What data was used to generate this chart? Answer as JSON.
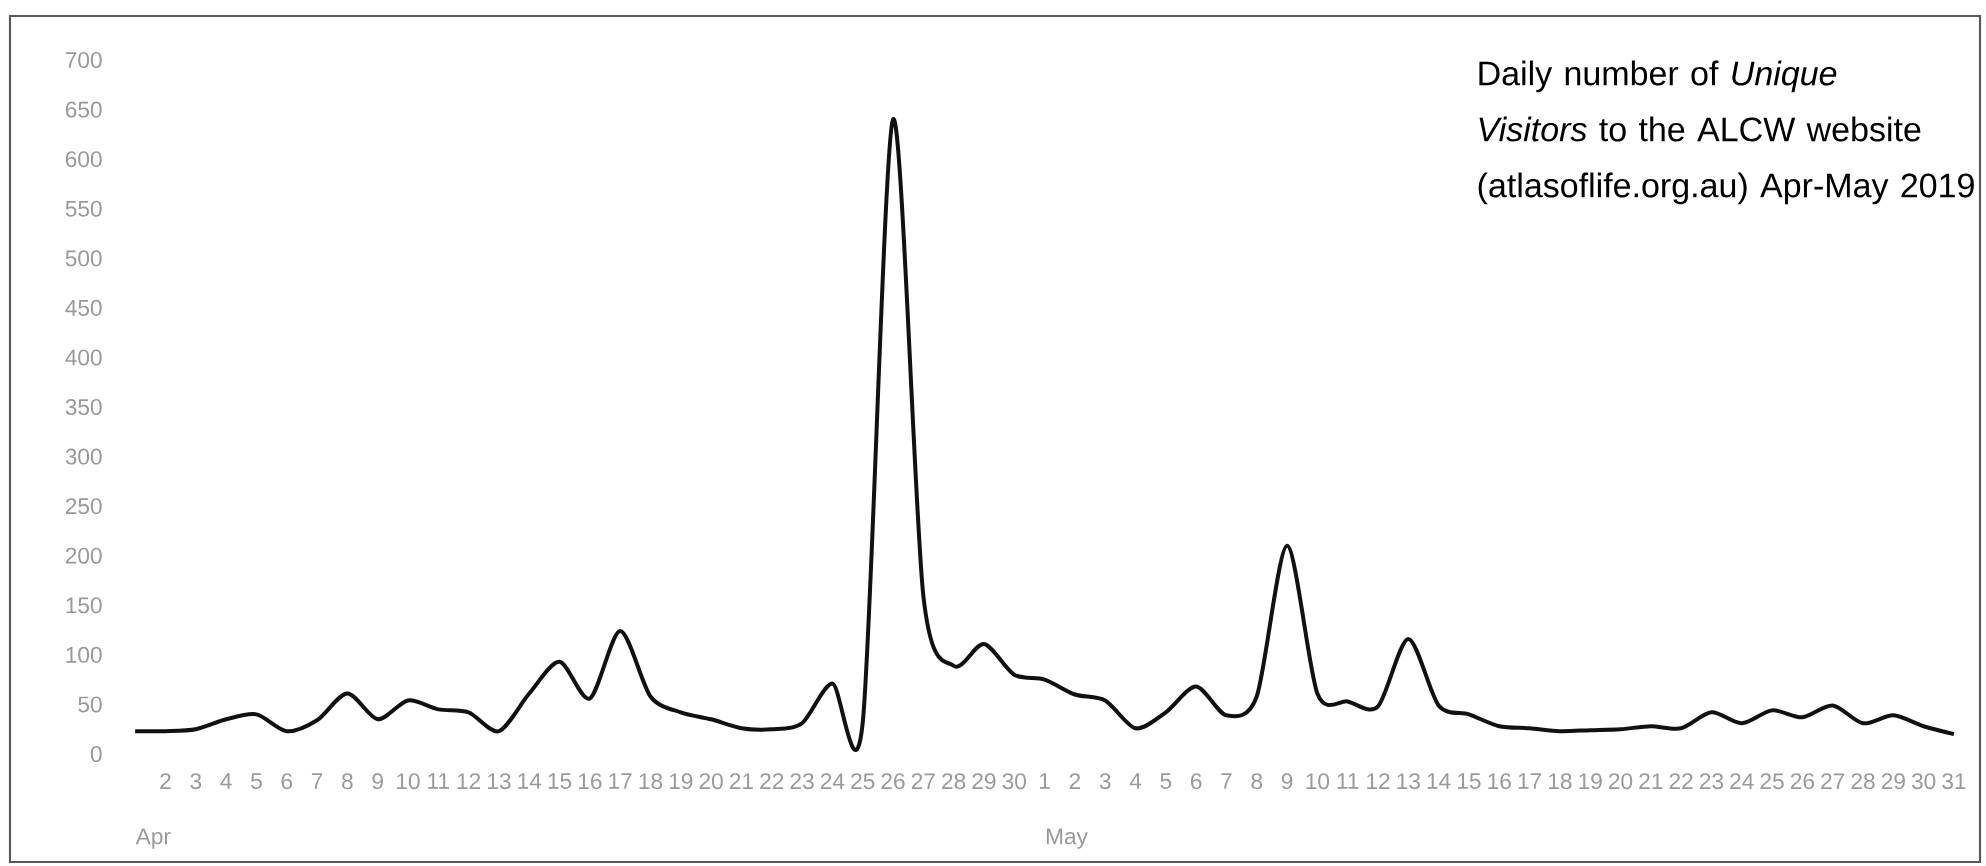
{
  "chart_data": {
    "type": "line",
    "title": "Daily number of *Unique Visitors* to the ALCW website (atlasoflife.org.au) Apr-May 2019",
    "categories": [
      null,
      "2",
      "3",
      "4",
      "5",
      "6",
      "7",
      "8",
      "9",
      "10",
      "11",
      "12",
      "13",
      "14",
      "15",
      "16",
      "17",
      "18",
      "19",
      "20",
      "21",
      "22",
      "23",
      "24",
      "25",
      "26",
      "27",
      "28",
      "29",
      "30",
      "1",
      "2",
      "3",
      "4",
      "5",
      "6",
      "7",
      "8",
      "9",
      "10",
      "11",
      "12",
      "13",
      "14",
      "15",
      "16",
      "17",
      "18",
      "19",
      "20",
      "21",
      "22",
      "23",
      "24",
      "25",
      "26",
      "27",
      "28",
      "29",
      "30",
      "31"
    ],
    "values": [
      23,
      23,
      25,
      35,
      40,
      23,
      34,
      61,
      35,
      54,
      45,
      42,
      23,
      61,
      93,
      56,
      124,
      58,
      42,
      35,
      26,
      25,
      31,
      71,
      31,
      640,
      160,
      89,
      111,
      80,
      75,
      60,
      54,
      26,
      42,
      68,
      39,
      58,
      210,
      61,
      53,
      48,
      116,
      49,
      40,
      28,
      26,
      23,
      24,
      25,
      28,
      26,
      42,
      31,
      44,
      37,
      49,
      31,
      39,
      28,
      20
    ],
    "color": "#111111",
    "ylim": [
      0,
      700
    ],
    "yticks": [
      0,
      50,
      100,
      150,
      200,
      250,
      300,
      350,
      400,
      450,
      500,
      550,
      600,
      650,
      700
    ],
    "annotations": [
      "Apr",
      "May"
    ]
  }
}
